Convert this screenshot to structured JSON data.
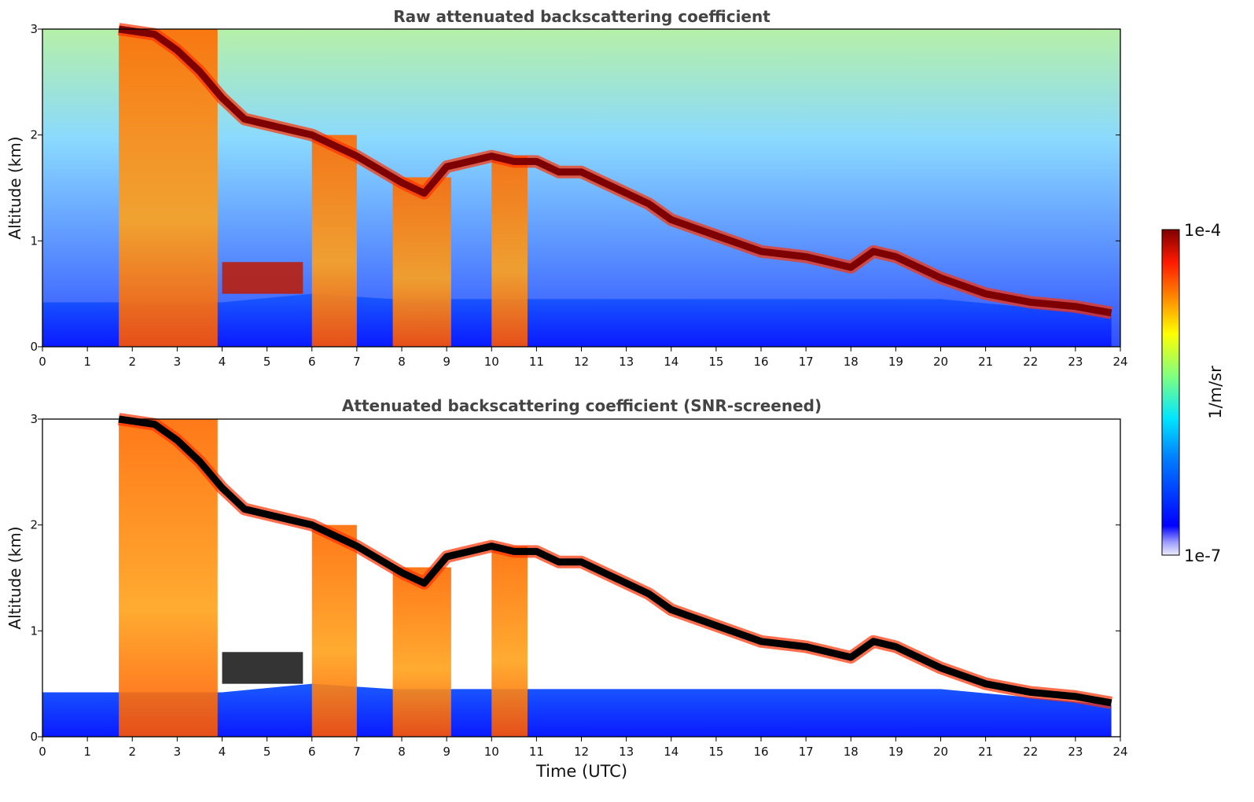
{
  "chart_data": [
    {
      "type": "heatmap",
      "title": "Raw attenuated backscattering coefficient",
      "xlabel": "",
      "ylabel": "Altitude (km)",
      "xlim": [
        0,
        24
      ],
      "ylim": [
        0,
        3
      ],
      "x_ticks": [
        "0",
        "1",
        "2",
        "3",
        "4",
        "5",
        "6",
        "7",
        "8",
        "9",
        "10",
        "11",
        "12",
        "13",
        "14",
        "15",
        "16",
        "17",
        "18",
        "19",
        "20",
        "21",
        "22",
        "23",
        "24"
      ],
      "y_ticks": [
        "0",
        "1",
        "2",
        "3"
      ],
      "screened": false,
      "cloud_base_layer": {
        "time_utc": [
          1.7,
          2.5,
          3.0,
          3.5,
          4.0,
          4.5,
          6.0,
          7.0,
          8.0,
          8.5,
          9.0,
          9.5,
          10.0,
          10.5,
          11.0,
          11.5,
          12.0,
          12.5,
          13.0,
          13.5,
          14.0,
          15.0,
          16.0,
          17.0,
          18.0,
          18.5,
          19.0,
          19.5,
          20.0,
          21.0,
          22.0,
          23.0,
          23.8
        ],
        "altitude_km": [
          3.0,
          2.95,
          2.8,
          2.6,
          2.35,
          2.15,
          2.0,
          1.8,
          1.55,
          1.45,
          1.7,
          1.75,
          1.8,
          1.75,
          1.75,
          1.65,
          1.65,
          1.55,
          1.45,
          1.35,
          1.2,
          1.05,
          0.9,
          0.85,
          0.75,
          0.9,
          0.85,
          0.75,
          0.65,
          0.5,
          0.42,
          0.38,
          0.32
        ]
      },
      "boundary_layer_top_km": {
        "time_utc": [
          0,
          4,
          6,
          7.8,
          20,
          23.8
        ],
        "altitude_km": [
          0.42,
          0.42,
          0.5,
          0.45,
          0.45,
          0.3
        ]
      }
    },
    {
      "type": "heatmap",
      "title": "Attenuated backscattering coefficient (SNR-screened)",
      "xlabel": "Time (UTC)",
      "ylabel": "Altitude (km)",
      "xlim": [
        0,
        24
      ],
      "ylim": [
        0,
        3
      ],
      "x_ticks": [
        "0",
        "1",
        "2",
        "3",
        "4",
        "5",
        "6",
        "7",
        "8",
        "9",
        "10",
        "11",
        "12",
        "13",
        "14",
        "15",
        "16",
        "17",
        "18",
        "19",
        "20",
        "21",
        "22",
        "23",
        "24"
      ],
      "y_ticks": [
        "0",
        "1",
        "2",
        "3"
      ],
      "screened": true
    }
  ],
  "colorbar": {
    "label": "1/m/sr",
    "max_label": "1e-4",
    "min_label": "1e-7",
    "scale": "log",
    "colormap": "jet",
    "colors": [
      "#e8e8ff",
      "#00007f",
      "#0000ff",
      "#007fff",
      "#00ffff",
      "#7fff7f",
      "#ffff00",
      "#ff7f00",
      "#ff0000",
      "#7f0000"
    ]
  }
}
